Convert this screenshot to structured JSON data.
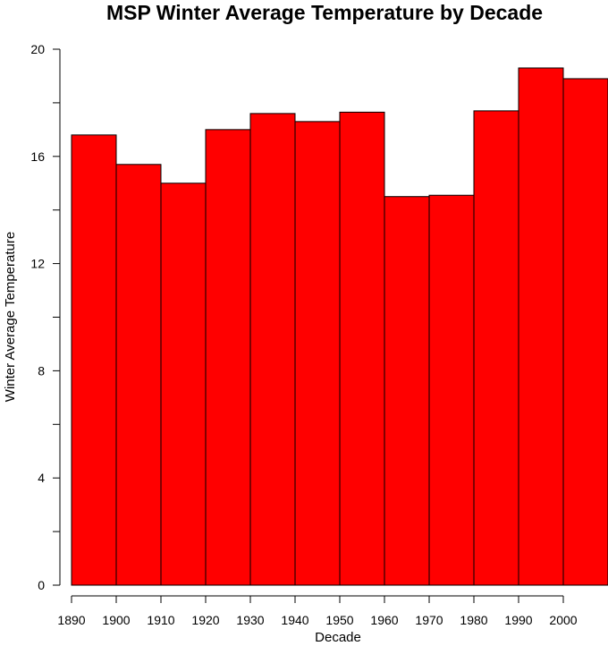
{
  "chart_data": {
    "type": "bar",
    "title": "MSP Winter Average Temperature by Decade",
    "xlabel": "Decade",
    "ylabel": "Winter Average Temperature",
    "categories": [
      "1890",
      "1900",
      "1910",
      "1920",
      "1930",
      "1940",
      "1950",
      "1960",
      "1970",
      "1980",
      "1990",
      "2000"
    ],
    "values": [
      16.8,
      15.7,
      15.0,
      17.0,
      17.6,
      17.3,
      17.65,
      14.5,
      14.55,
      17.7,
      19.3,
      18.9
    ],
    "ylim": [
      0,
      20
    ],
    "y_ticks_labeled": [
      0,
      4,
      8,
      12,
      16,
      20
    ],
    "y_ticks_minor": [
      2,
      6,
      10,
      14,
      18
    ],
    "grid": false,
    "bar_color": "#ff0000"
  }
}
